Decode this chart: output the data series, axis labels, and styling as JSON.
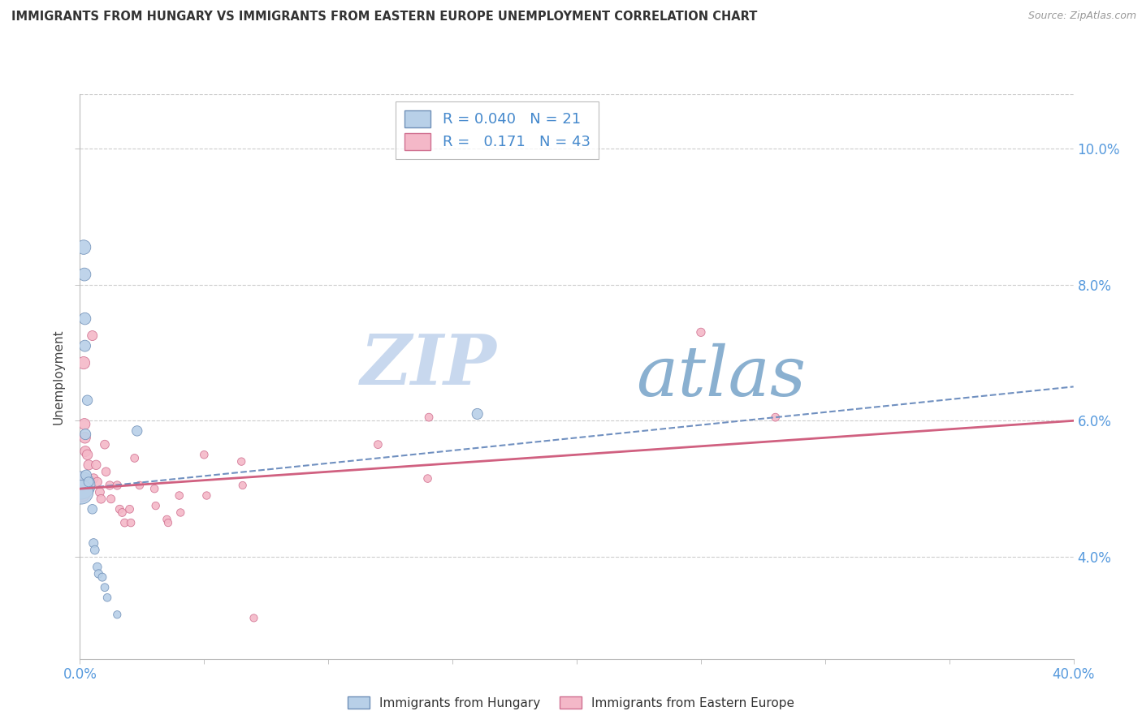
{
  "title": "IMMIGRANTS FROM HUNGARY VS IMMIGRANTS FROM EASTERN EUROPE UNEMPLOYMENT CORRELATION CHART",
  "source": "Source: ZipAtlas.com",
  "ylabel": "Unemployment",
  "y_ticks": [
    4.0,
    6.0,
    8.0,
    10.0
  ],
  "x_range": [
    0,
    40
  ],
  "y_range": [
    2.5,
    10.8
  ],
  "watermark_zip": "ZIP",
  "watermark_atlas": "atlas",
  "legend_blue_r": "0.040",
  "legend_blue_n": "21",
  "legend_pink_r": "0.171",
  "legend_pink_n": "43",
  "color_blue_fill": "#b8d0e8",
  "color_pink_fill": "#f4b8c8",
  "color_blue_edge": "#7090b8",
  "color_pink_edge": "#d07090",
  "color_blue_line": "#7090c0",
  "color_pink_line": "#d06080",
  "color_axis_text": "#5599dd",
  "color_title": "#333333",
  "color_source": "#999999",
  "color_watermark_zip": "#c8d8ee",
  "color_watermark_atlas": "#8ab0d0",
  "color_grid": "#cccccc",
  "color_legend_text": "#4488cc",
  "blue_points": [
    [
      0.05,
      5.05
    ],
    [
      0.05,
      4.95
    ],
    [
      0.15,
      8.55
    ],
    [
      0.18,
      8.15
    ],
    [
      0.2,
      7.5
    ],
    [
      0.2,
      7.1
    ],
    [
      0.22,
      5.8
    ],
    [
      0.25,
      5.2
    ],
    [
      0.3,
      6.3
    ],
    [
      0.35,
      5.1
    ],
    [
      0.5,
      4.7
    ],
    [
      0.55,
      4.2
    ],
    [
      0.6,
      4.1
    ],
    [
      0.7,
      3.85
    ],
    [
      0.75,
      3.75
    ],
    [
      0.9,
      3.7
    ],
    [
      1.0,
      3.55
    ],
    [
      1.1,
      3.4
    ],
    [
      1.5,
      3.15
    ],
    [
      2.3,
      5.85
    ],
    [
      16.0,
      6.1
    ]
  ],
  "pink_points": [
    [
      0.05,
      5.05
    ],
    [
      0.05,
      4.95
    ],
    [
      0.1,
      5.15
    ],
    [
      0.15,
      6.85
    ],
    [
      0.18,
      5.95
    ],
    [
      0.2,
      5.75
    ],
    [
      0.22,
      5.55
    ],
    [
      0.3,
      5.5
    ],
    [
      0.35,
      5.35
    ],
    [
      0.5,
      7.25
    ],
    [
      0.55,
      5.15
    ],
    [
      0.65,
      5.35
    ],
    [
      0.7,
      5.1
    ],
    [
      0.8,
      4.95
    ],
    [
      0.85,
      4.85
    ],
    [
      1.0,
      5.65
    ],
    [
      1.05,
      5.25
    ],
    [
      1.2,
      5.05
    ],
    [
      1.25,
      4.85
    ],
    [
      1.5,
      5.05
    ],
    [
      1.6,
      4.7
    ],
    [
      1.7,
      4.65
    ],
    [
      1.8,
      4.5
    ],
    [
      2.0,
      4.7
    ],
    [
      2.05,
      4.5
    ],
    [
      2.2,
      5.45
    ],
    [
      2.4,
      5.05
    ],
    [
      3.0,
      5.0
    ],
    [
      3.05,
      4.75
    ],
    [
      3.5,
      4.55
    ],
    [
      3.55,
      4.5
    ],
    [
      4.0,
      4.9
    ],
    [
      4.05,
      4.65
    ],
    [
      5.0,
      5.5
    ],
    [
      5.1,
      4.9
    ],
    [
      6.5,
      5.4
    ],
    [
      6.55,
      5.05
    ],
    [
      7.0,
      3.1
    ],
    [
      12.0,
      5.65
    ],
    [
      14.0,
      5.15
    ],
    [
      14.05,
      6.05
    ],
    [
      25.0,
      7.3
    ],
    [
      28.0,
      6.05
    ]
  ],
  "blue_sizes": [
    600,
    450,
    160,
    130,
    110,
    100,
    90,
    85,
    80,
    75,
    70,
    65,
    60,
    58,
    55,
    52,
    50,
    48,
    45,
    80,
    90
  ],
  "pink_sizes": [
    400,
    300,
    140,
    120,
    100,
    95,
    85,
    80,
    78,
    75,
    70,
    68,
    65,
    62,
    60,
    60,
    58,
    55,
    53,
    55,
    52,
    50,
    50,
    50,
    48,
    50,
    48,
    48,
    46,
    46,
    45,
    48,
    46,
    48,
    46,
    46,
    44,
    44,
    50,
    48,
    50,
    55,
    50
  ]
}
